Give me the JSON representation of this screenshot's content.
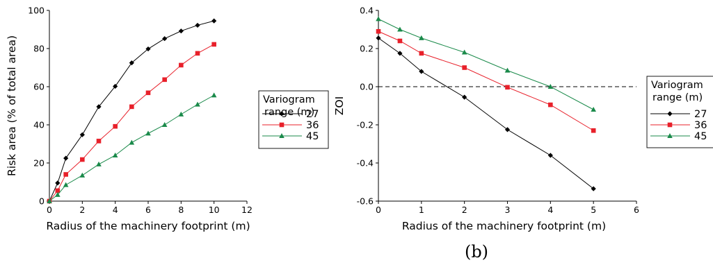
{
  "chart_data": [
    {
      "type": "line",
      "title": "",
      "xlabel": "Radius of the machinery footprint (m)",
      "ylabel": "Risk area (% of total area)",
      "xlim": [
        0,
        12
      ],
      "ylim": [
        0,
        100
      ],
      "xticks": [
        0,
        2,
        4,
        6,
        8,
        10,
        12
      ],
      "yticks": [
        0,
        20,
        40,
        60,
        80,
        100
      ],
      "grid": false,
      "legend": {
        "title_lines": [
          "Variogram",
          "range (m)"
        ],
        "placement": "right"
      },
      "x": [
        0,
        0.5,
        1,
        2,
        3,
        4,
        5,
        6,
        7,
        8,
        9,
        10
      ],
      "series": [
        {
          "name": "27",
          "color": "#000000",
          "marker": "diamond",
          "values": [
            0,
            9.5,
            22.5,
            34.8,
            49.5,
            60.2,
            72.5,
            79.8,
            85.2,
            89.2,
            92.2,
            94.5
          ]
        },
        {
          "name": "36",
          "color": "#e8202a",
          "marker": "square",
          "values": [
            0,
            5.5,
            14,
            21.8,
            31.5,
            39.2,
            49.5,
            56.8,
            63.7,
            71.3,
            77.5,
            82.2
          ]
        },
        {
          "name": "45",
          "color": "#1a8a4a",
          "marker": "triangle",
          "values": [
            0,
            3.3,
            8.5,
            13.5,
            19.3,
            24,
            30.7,
            35.5,
            40,
            45.5,
            50.7,
            55.5
          ]
        }
      ]
    },
    {
      "type": "line",
      "title": "",
      "panel_label": "(b)",
      "xlabel": "Radius of the machinery footprint (m)",
      "ylabel": "ZOI",
      "xlim": [
        0,
        6
      ],
      "ylim": [
        -0.6,
        0.4
      ],
      "xticks": [
        0,
        1,
        2,
        3,
        4,
        5,
        6
      ],
      "yticks": [
        -0.6,
        -0.4,
        -0.2,
        0.0,
        0.2,
        0.4
      ],
      "ytick_labels": [
        "-0.6",
        "-0.4",
        "-0.2",
        "0.0",
        "0.2",
        "0.4"
      ],
      "reference_line_y": 0,
      "grid": false,
      "legend": {
        "title_lines": [
          "Variogram",
          "range (m)"
        ],
        "placement": "right"
      },
      "x": [
        0,
        0.5,
        1,
        2,
        3,
        4,
        5
      ],
      "series": [
        {
          "name": "27",
          "color": "#000000",
          "marker": "diamond",
          "values": [
            0.255,
            0.175,
            0.08,
            -0.055,
            -0.225,
            -0.36,
            -0.535
          ]
        },
        {
          "name": "36",
          "color": "#e8202a",
          "marker": "square",
          "values": [
            0.29,
            0.24,
            0.175,
            0.1,
            -0.003,
            -0.095,
            -0.23
          ]
        },
        {
          "name": "45",
          "color": "#1a8a4a",
          "marker": "triangle",
          "values": [
            0.355,
            0.3,
            0.255,
            0.18,
            0.085,
            0.0,
            -0.12
          ]
        }
      ]
    }
  ]
}
